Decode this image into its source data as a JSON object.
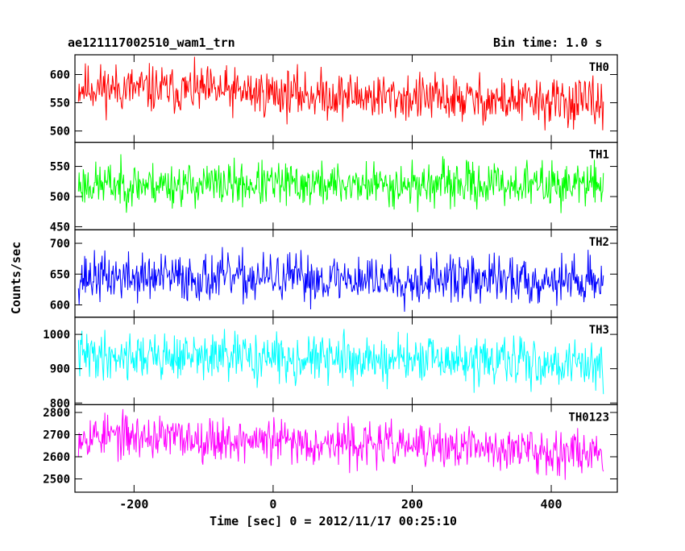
{
  "header": {
    "title": "ae121117002510_wam1_trn",
    "bin_time": "Bin time: 1.0 s"
  },
  "chart_data": {
    "type": "line",
    "xlabel": "Time [sec] 0 = 2012/11/17 00:25:10",
    "ylabel": "Counts/sec",
    "xlim": [
      -285,
      495
    ],
    "x_range": [
      -280,
      475
    ],
    "x_ticks": [
      -200,
      0,
      200,
      400
    ],
    "panels": [
      {
        "name": "TH0",
        "color": "#ff0000",
        "ylim": [
          480,
          635
        ],
        "yticks": [
          500,
          550,
          600
        ],
        "mean_start": 578,
        "mean_end": 548,
        "spread": 28,
        "seed": 11
      },
      {
        "name": "TH1",
        "color": "#00ff00",
        "ylim": [
          445,
          590
        ],
        "yticks": [
          450,
          500,
          550
        ],
        "mean_start": 520,
        "mean_end": 520,
        "spread": 24,
        "seed": 23
      },
      {
        "name": "TH2",
        "color": "#0000ff",
        "ylim": [
          580,
          722
        ],
        "yticks": [
          600,
          650,
          700
        ],
        "mean_start": 645,
        "mean_end": 640,
        "spread": 26,
        "seed": 37
      },
      {
        "name": "TH3",
        "color": "#00ffff",
        "ylim": [
          795,
          1050
        ],
        "yticks": [
          800,
          900,
          1000
        ],
        "mean_start": 940,
        "mean_end": 915,
        "spread": 45,
        "seed": 41
      },
      {
        "name": "TH0123",
        "color": "#ff00ff",
        "ylim": [
          2440,
          2835
        ],
        "yticks": [
          2500,
          2600,
          2700,
          2800
        ],
        "mean_start": 2700,
        "mean_end": 2620,
        "spread": 65,
        "seed": 53
      }
    ]
  }
}
